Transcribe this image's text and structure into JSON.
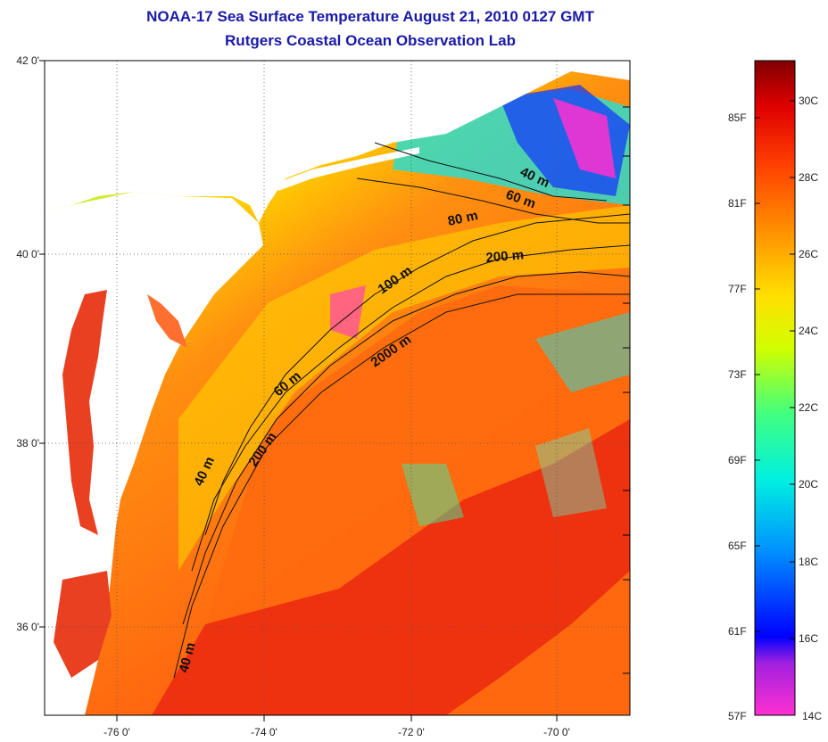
{
  "title": "NOAA-17 Sea Surface Temperature August 21, 2010 0127 GMT",
  "subtitle": "Rutgers Coastal Ocean Observation Lab",
  "lat_ticks": [
    "42 0'",
    "40 0'",
    "38 0'",
    "36 0'"
  ],
  "lon_ticks": [
    "-76 0'",
    "-74 0'",
    "-72 0'",
    "-70 0'"
  ],
  "contours": [
    "40 m",
    "60 m",
    "80 m",
    "200 m",
    "100 m",
    "2000 m",
    "60 m",
    "40 m",
    "200 m",
    "40 m"
  ],
  "colorbar": {
    "fahrenheit": [
      "85F",
      "81F",
      "77F",
      "73F",
      "69F",
      "65F",
      "61F",
      "57F"
    ],
    "celsius": [
      "30C",
      "28C",
      "26C",
      "24C",
      "22C",
      "20C",
      "18C",
      "16C",
      "14C"
    ]
  },
  "colors": {
    "title": "#1a1aa8",
    "land": "#ffffff",
    "warm": "#ff6a10",
    "hot": "#e82010",
    "mid": "#ffd000",
    "cool": "#20e0d8",
    "cold": "#1030ff",
    "coldest": "#ff30d0"
  }
}
